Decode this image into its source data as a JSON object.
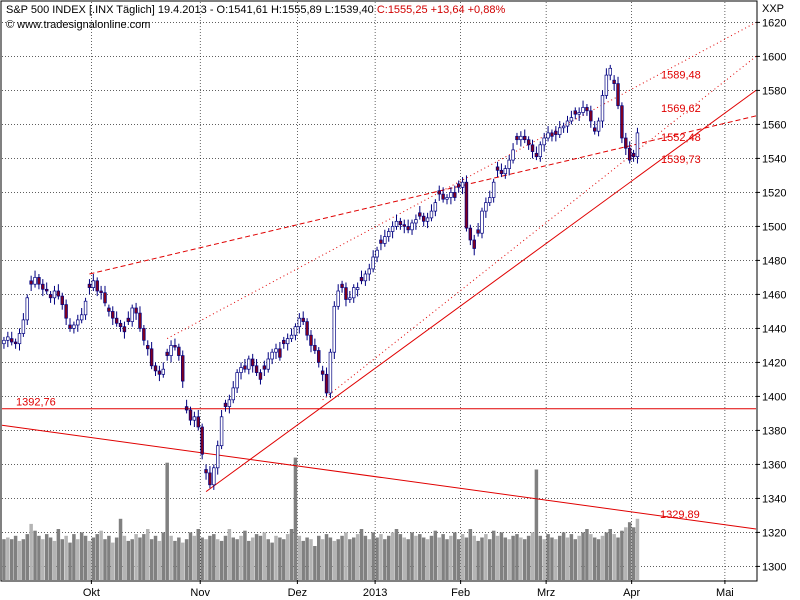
{
  "header": {
    "instrument": "S&P 500 INDEX [.INX  Täglich]",
    "ohl": "19.4.2013 - O:1541,61 H:1555,89 L:1539,40",
    "close_change": "C:1555,25 +13,64 +0,88%",
    "source": "© www.tradesignalonline.com",
    "corner_label": "XXP"
  },
  "colors": {
    "up_candle": "#ffffff",
    "down_candle": "#800020",
    "candle_outline": "#000080",
    "trendline": "#e00000",
    "volume_dark": "#808080",
    "volume_light": "#b4b4b4"
  },
  "chart_data": {
    "type": "candlestick",
    "title": "S&P 500 INDEX [.INX  Täglich]",
    "y_axis": {
      "min": 1292,
      "max": 1632,
      "ticks": [
        1300,
        1320,
        1340,
        1360,
        1380,
        1400,
        1420,
        1440,
        1460,
        1480,
        1500,
        1520,
        1540,
        1560,
        1580,
        1600,
        1620
      ],
      "position": "right"
    },
    "x_axis": {
      "labels": [
        "Okt",
        "Nov",
        "Dez",
        "2013",
        "Feb",
        "Mrz",
        "Apr",
        "Mai"
      ],
      "label_index": [
        23,
        51,
        76,
        96,
        118,
        140,
        162,
        186
      ],
      "total_slots": 194
    },
    "grid": true,
    "close": [
      1433,
      1435,
      1432,
      1431,
      1437,
      1445,
      1458,
      1466,
      1470,
      1466,
      1463,
      1462,
      1458,
      1462,
      1459,
      1454,
      1446,
      1440,
      1442,
      1445,
      1448,
      1456,
      1464,
      1468,
      1462,
      1461,
      1455,
      1450,
      1446,
      1443,
      1441,
      1438,
      1444,
      1452,
      1449,
      1440,
      1433,
      1428,
      1418,
      1415,
      1413,
      1416,
      1424,
      1430,
      1429,
      1424,
      1409,
      1392,
      1386,
      1388,
      1382,
      1366,
      1355,
      1348,
      1358,
      1371,
      1388,
      1394,
      1398,
      1405,
      1414,
      1417,
      1416,
      1422,
      1418,
      1414,
      1410,
      1416,
      1422,
      1426,
      1428,
      1423,
      1431,
      1434,
      1436,
      1441,
      1446,
      1444,
      1436,
      1430,
      1427,
      1420,
      1413,
      1402,
      1426,
      1453,
      1462,
      1464,
      1457,
      1458,
      1464,
      1464,
      1468,
      1472,
      1475,
      1482,
      1486,
      1490,
      1494,
      1497,
      1500,
      1503,
      1501,
      1500,
      1498,
      1502,
      1504,
      1506,
      1503,
      1505,
      1509,
      1514,
      1519,
      1516,
      1517,
      1520,
      1517,
      1523,
      1526,
      1499,
      1492,
      1487,
      1496,
      1509,
      1514,
      1517,
      1526,
      1533,
      1531,
      1534,
      1539,
      1545,
      1551,
      1553,
      1551,
      1548,
      1544,
      1541,
      1548,
      1552,
      1555,
      1553,
      1554,
      1558,
      1559,
      1562,
      1564,
      1566,
      1567,
      1570,
      1568,
      1562,
      1556,
      1562,
      1577,
      1589,
      1593,
      1584,
      1571,
      1552,
      1546,
      1539,
      1541,
      1555
    ],
    "volume": [
      1316,
      1317,
      1316,
      1318,
      1315,
      1316,
      1319,
      1325,
      1321,
      1318,
      1316,
      1319,
      1317,
      1315,
      1322,
      1316,
      1318,
      1314,
      1319,
      1316,
      1320,
      1318,
      1315,
      1317,
      1319,
      1321,
      1316,
      1318,
      1314,
      1317,
      1328,
      1318,
      1315,
      1316,
      1319,
      1317,
      1319,
      1322,
      1316,
      1318,
      1315,
      1320,
      1361,
      1318,
      1315,
      1317,
      1314,
      1316,
      1320,
      1318,
      1322,
      1317,
      1316,
      1318,
      1319,
      1316,
      1315,
      1318,
      1322,
      1317,
      1316,
      1318,
      1321,
      1315,
      1317,
      1319,
      1318,
      1320,
      1316,
      1314,
      1318,
      1317,
      1316,
      1319,
      1322,
      1364,
      1318,
      1315,
      1317,
      1316,
      1312,
      1318,
      1316,
      1319,
      1317,
      1315,
      1316,
      1318,
      1320,
      1316,
      1317,
      1319,
      1322,
      1318,
      1316,
      1320,
      1317,
      1319,
      1316,
      1318,
      1320,
      1322,
      1319,
      1317,
      1316,
      1320,
      1318,
      1319,
      1317,
      1316,
      1318,
      1321,
      1317,
      1319,
      1316,
      1318,
      1320,
      1316,
      1319,
      1317,
      1322,
      1318,
      1315,
      1317,
      1319,
      1316,
      1321,
      1318,
      1320,
      1317,
      1316,
      1318,
      1319,
      1317,
      1316,
      1318,
      1320,
      1357,
      1318,
      1316,
      1319,
      1317,
      1316,
      1318,
      1320,
      1317,
      1319,
      1316,
      1318,
      1320,
      1322,
      1319,
      1317,
      1316,
      1318,
      1320,
      1322,
      1319,
      1317,
      1321,
      1323,
      1326,
      1323,
      1328
    ]
  },
  "annotations": {
    "hline_value": 1392.76,
    "hline_label": "1392,76",
    "right_labels": [
      {
        "value": 1589.48,
        "text": "1589,48"
      },
      {
        "value": 1569.62,
        "text": "1569,62"
      },
      {
        "value": 1552.48,
        "text": "1552,48"
      },
      {
        "value": 1539.73,
        "text": "1539,73"
      },
      {
        "value": 1329.89,
        "text": "1329,89"
      }
    ]
  }
}
